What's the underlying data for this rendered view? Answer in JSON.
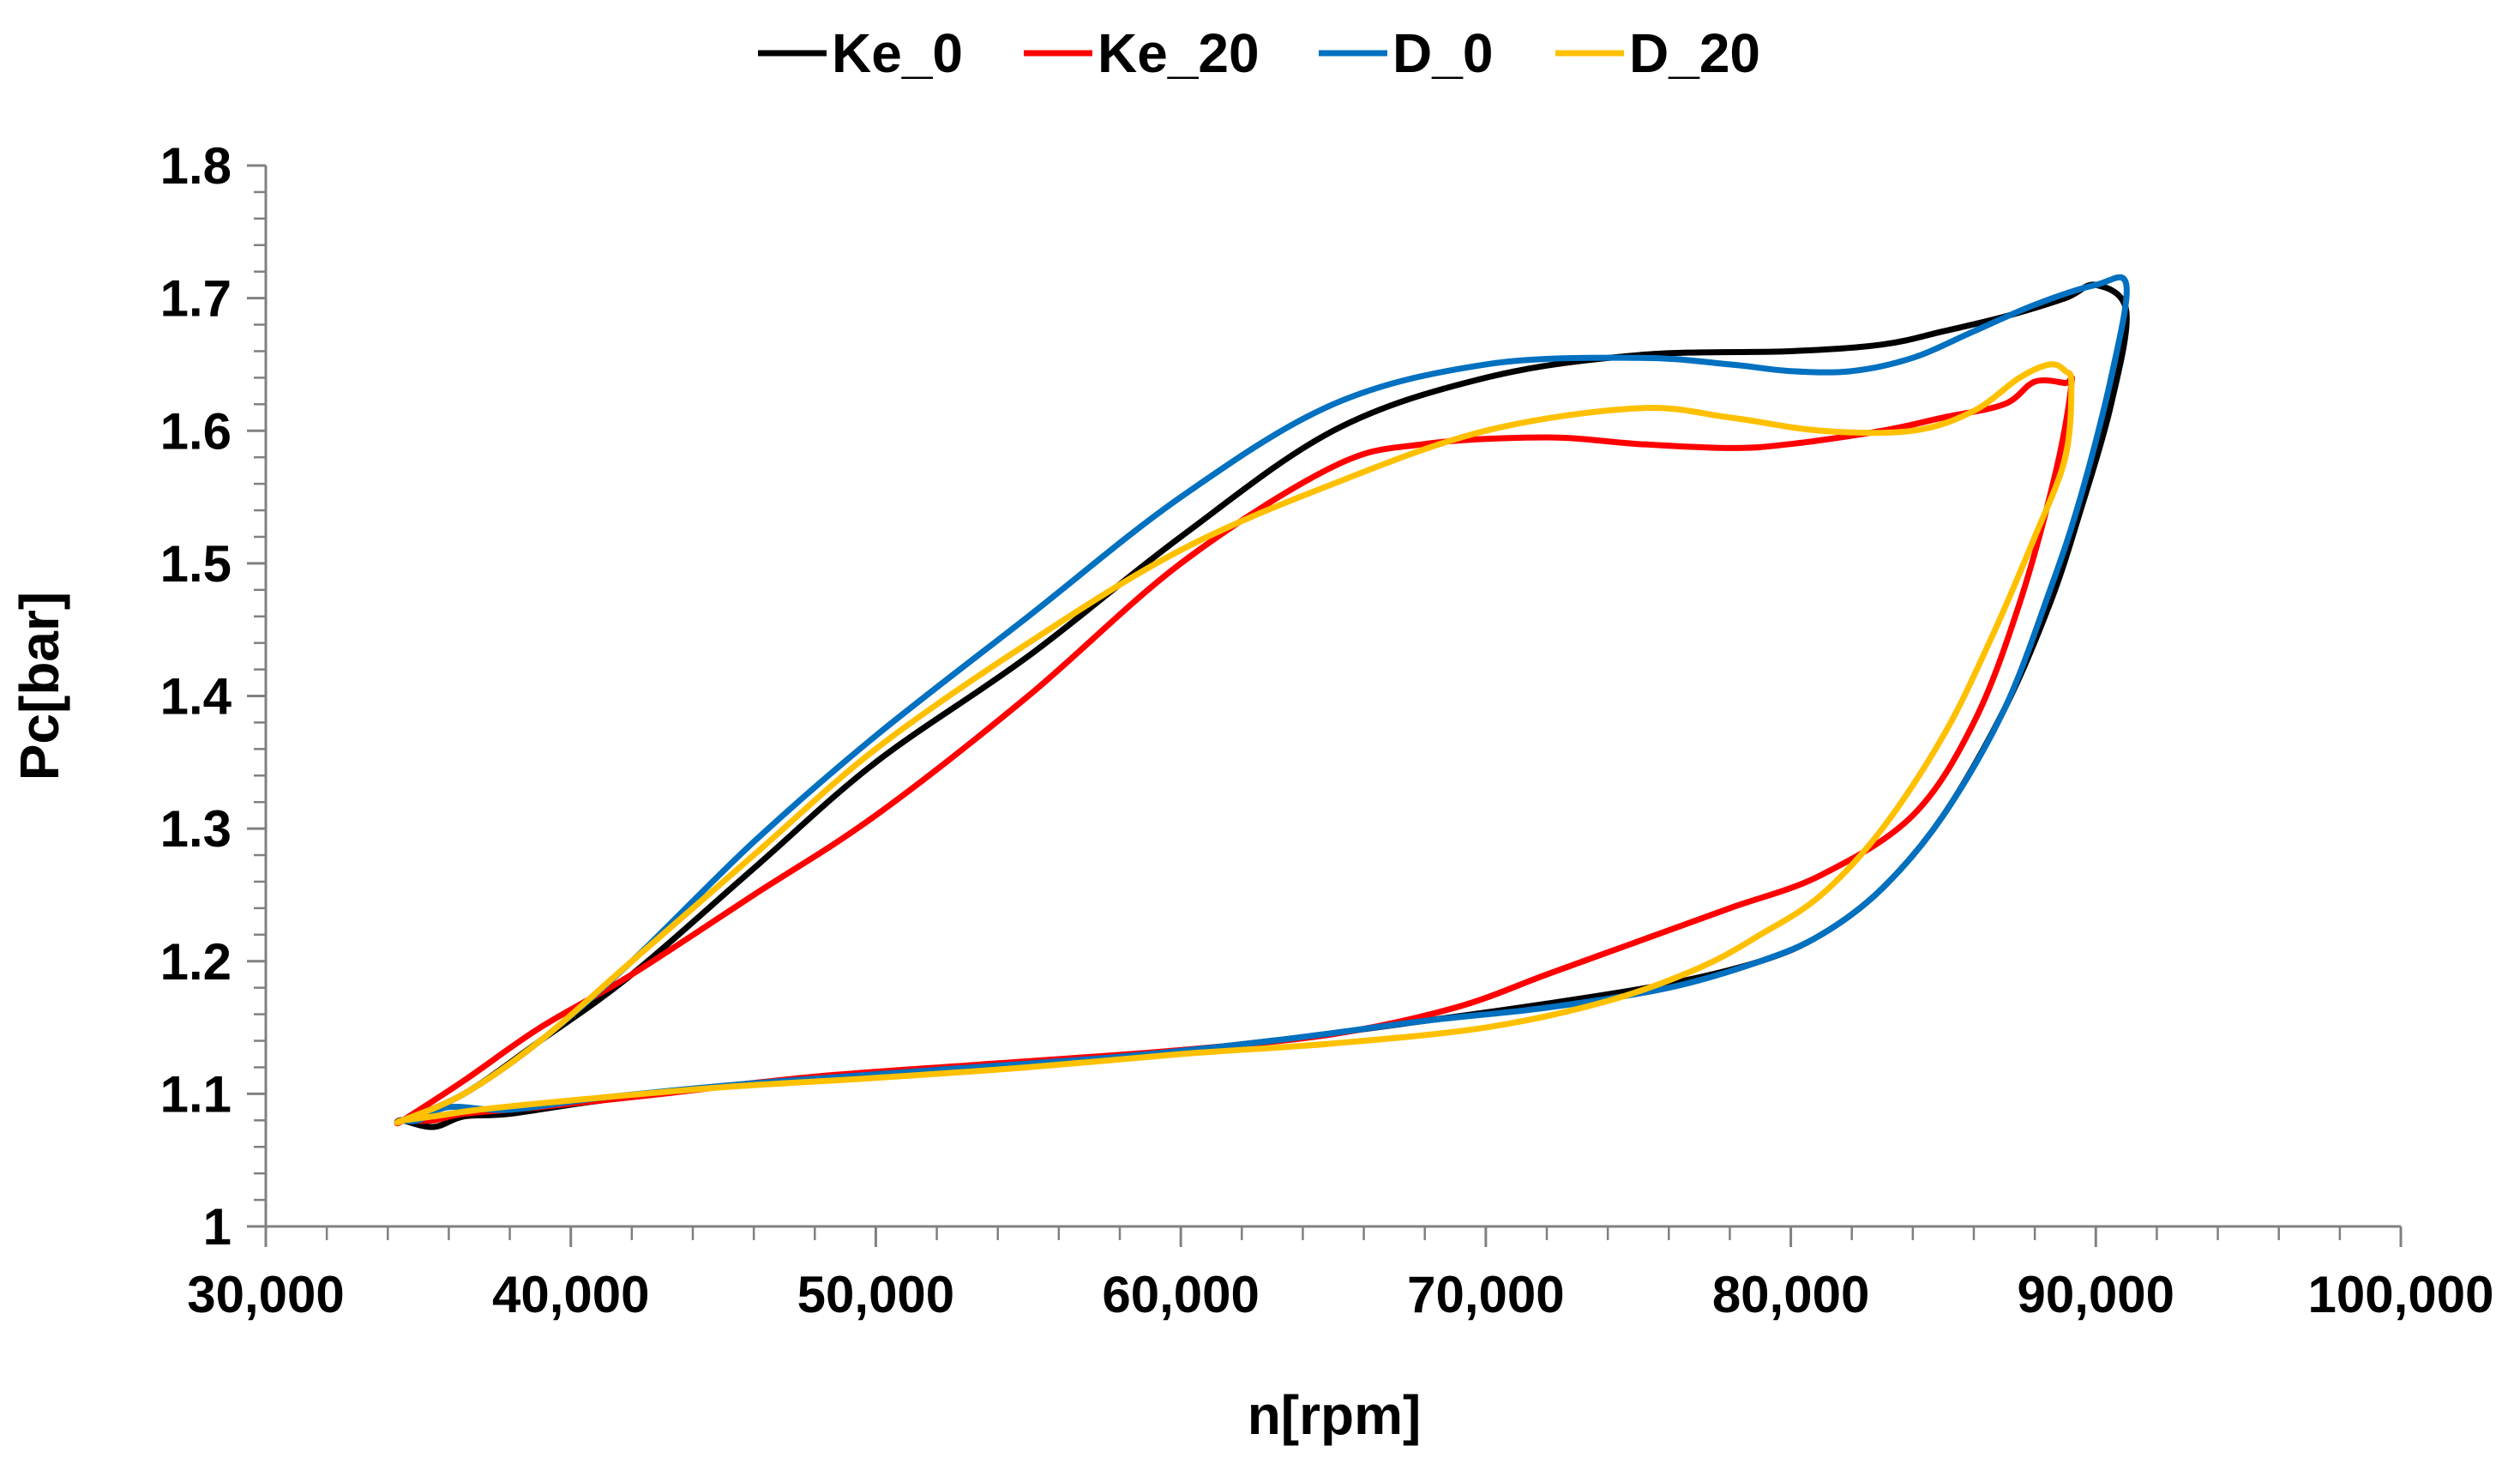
{
  "chart_data": {
    "type": "line",
    "title": "",
    "xlabel": "n[rpm]",
    "ylabel": "Pc[bar]",
    "xlim": [
      30000,
      100000
    ],
    "ylim": [
      1.0,
      1.8
    ],
    "x_ticks": [
      30000,
      40000,
      50000,
      60000,
      70000,
      80000,
      90000,
      100000
    ],
    "x_tick_labels": [
      "30,000",
      "40,000",
      "50,000",
      "60,000",
      "70,000",
      "80,000",
      "90,000",
      "100,000"
    ],
    "y_ticks": [
      1.0,
      1.1,
      1.2,
      1.3,
      1.4,
      1.5,
      1.6,
      1.7,
      1.8
    ],
    "y_tick_labels": [
      "1",
      "1.1",
      "1.2",
      "1.3",
      "1.4",
      "1.5",
      "1.6",
      "1.7",
      "1.8"
    ],
    "grid": false,
    "legend_position": "top-center",
    "series": [
      {
        "name": "Ke_0",
        "color": "#000000",
        "x": [
          34500,
          36500,
          39000,
          42000,
          46000,
          50000,
          55000,
          60000,
          65000,
          70000,
          75000,
          80000,
          83000,
          85000,
          87000,
          89000,
          90000,
          91000,
          90500,
          89500,
          88500,
          87000,
          85000,
          83000,
          81000,
          79000,
          76000,
          72000,
          68000,
          63000,
          58000,
          52000,
          46000,
          41000,
          38000,
          36500,
          35500,
          34500
        ],
        "y": [
          1.08,
          1.1,
          1.14,
          1.19,
          1.27,
          1.35,
          1.43,
          1.52,
          1.6,
          1.64,
          1.657,
          1.66,
          1.665,
          1.675,
          1.686,
          1.7,
          1.71,
          1.69,
          1.62,
          1.54,
          1.47,
          1.39,
          1.31,
          1.255,
          1.22,
          1.2,
          1.183,
          1.168,
          1.155,
          1.14,
          1.128,
          1.118,
          1.108,
          1.095,
          1.085,
          1.083,
          1.075,
          1.08
        ]
      },
      {
        "name": "Ke_20",
        "color": "#ff0000",
        "x": [
          34500,
          36500,
          39000,
          42000,
          46000,
          50000,
          55000,
          60000,
          65000,
          68000,
          72000,
          75000,
          78000,
          80000,
          83000,
          85000,
          87000,
          88000,
          89000,
          89200,
          88700,
          87500,
          86000,
          84000,
          81000,
          78000,
          75000,
          72000,
          69000,
          65000,
          60000,
          54000,
          48000,
          43000,
          39000,
          36500,
          35500,
          34500
        ],
        "y": [
          1.08,
          1.11,
          1.15,
          1.19,
          1.25,
          1.31,
          1.4,
          1.5,
          1.573,
          1.59,
          1.595,
          1.59,
          1.587,
          1.59,
          1.6,
          1.61,
          1.62,
          1.637,
          1.636,
          1.635,
          1.57,
          1.47,
          1.38,
          1.31,
          1.265,
          1.24,
          1.215,
          1.19,
          1.165,
          1.145,
          1.133,
          1.123,
          1.113,
          1.1,
          1.09,
          1.085,
          1.08,
          1.08
        ]
      },
      {
        "name": "D_0",
        "color": "#0070c0",
        "x": [
          34500,
          36500,
          39000,
          42000,
          46000,
          50000,
          55000,
          60000,
          65000,
          70000,
          75000,
          78000,
          80000,
          82000,
          84000,
          86000,
          88000,
          90000,
          91000,
          90500,
          89500,
          88500,
          87000,
          85000,
          83000,
          81000,
          79000,
          76000,
          72000,
          68000,
          63000,
          58000,
          52000,
          46000,
          41000,
          38000,
          36000,
          35000,
          34500
        ],
        "y": [
          1.08,
          1.1,
          1.14,
          1.2,
          1.29,
          1.37,
          1.46,
          1.55,
          1.62,
          1.65,
          1.655,
          1.65,
          1.645,
          1.645,
          1.655,
          1.675,
          1.695,
          1.71,
          1.71,
          1.64,
          1.55,
          1.48,
          1.39,
          1.31,
          1.255,
          1.22,
          1.2,
          1.18,
          1.165,
          1.155,
          1.14,
          1.128,
          1.118,
          1.108,
          1.097,
          1.088,
          1.09,
          1.08,
          1.08
        ]
      },
      {
        "name": "D_20",
        "color": "#ffc000",
        "x": [
          34500,
          36500,
          39000,
          42000,
          46000,
          50000,
          55000,
          60000,
          65000,
          70000,
          75000,
          78000,
          81000,
          84000,
          86000,
          87500,
          88500,
          89000,
          89200,
          89000,
          88000,
          86500,
          85000,
          83000,
          81000,
          79000,
          77000,
          74000,
          70000,
          65000,
          60000,
          55000,
          50000,
          45000,
          40000,
          37000,
          35500,
          34500
        ],
        "y": [
          1.08,
          1.1,
          1.14,
          1.2,
          1.28,
          1.36,
          1.44,
          1.51,
          1.56,
          1.6,
          1.617,
          1.61,
          1.6,
          1.6,
          1.615,
          1.64,
          1.65,
          1.645,
          1.635,
          1.58,
          1.52,
          1.44,
          1.37,
          1.3,
          1.25,
          1.22,
          1.195,
          1.17,
          1.15,
          1.138,
          1.13,
          1.12,
          1.112,
          1.105,
          1.095,
          1.088,
          1.083,
          1.08
        ]
      }
    ]
  }
}
